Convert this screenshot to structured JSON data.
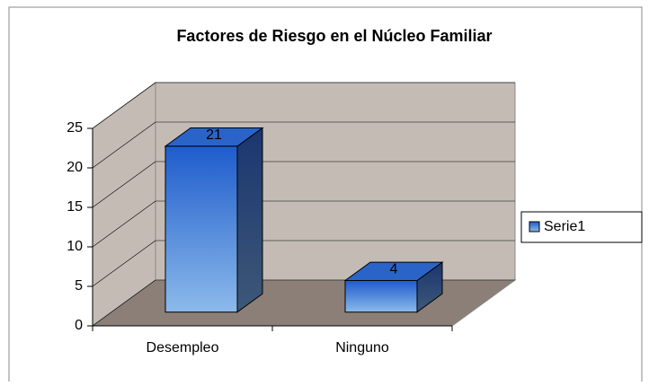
{
  "chart_data": {
    "type": "bar",
    "title": "Factores de Riesgo en el Núcleo Familiar",
    "categories": [
      "Desempleo",
      "Ninguno"
    ],
    "series": [
      {
        "name": "Serie1",
        "color": "#2a64c8",
        "values": [
          21,
          4
        ]
      }
    ],
    "ylim": [
      0,
      25
    ],
    "yticks": [
      0,
      5,
      10,
      15,
      20,
      25
    ],
    "grid": true,
    "legend": "right"
  }
}
